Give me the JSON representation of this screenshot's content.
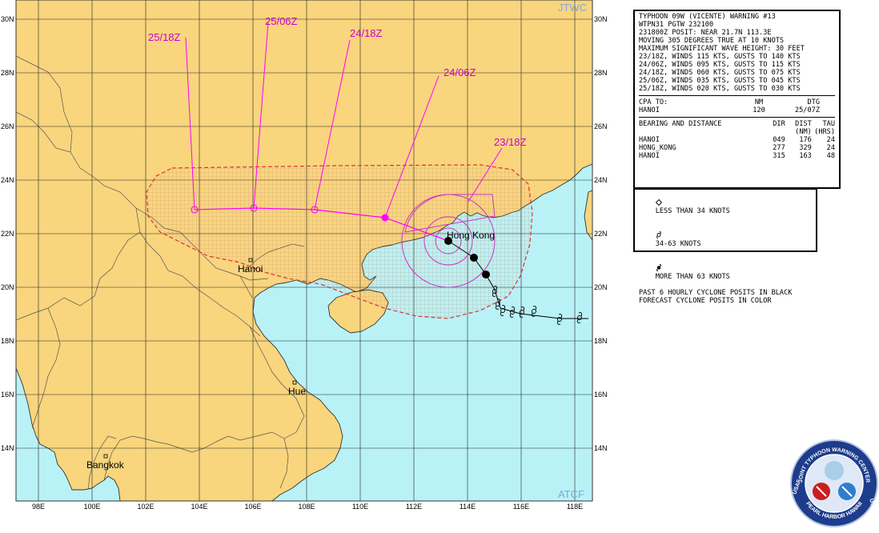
{
  "header": {
    "title": "TYPHOON 09W (VICENTE) WARNING #13",
    "lines": [
      "WTPN31 PGTW 232100",
      "231800Z POSIT: NEAR 21.7N 113.3E",
      "MOVING 305 DEGREES TRUE AT 10 KNOTS",
      "MAXIMUM SIGNIFICANT WAVE HEIGHT: 30 FEET"
    ],
    "forecasts": [
      "23/18Z, WINDS 115 KTS, GUSTS TO 140 KTS",
      "24/06Z, WINDS 095 KTS, GUSTS TO 115 KTS",
      "24/18Z, WINDS 060 KTS, GUSTS TO 075 KTS",
      "25/06Z, WINDS 035 KTS, GUSTS TO 045 KTS",
      "25/18Z, WINDS 020 KTS, GUSTS TO 030 KTS"
    ]
  },
  "cpa": {
    "label": "CPA TO:",
    "col_nm": "NM",
    "col_dtg": "DTG",
    "city": "HANOI",
    "nm": "120",
    "dtg": "25/07Z"
  },
  "bearing": {
    "label": "BEARING AND DISTANCE",
    "col_dir": "DIR",
    "col_dist": "DIST",
    "col_tau": "TAU",
    "sub_dist": "(NM)",
    "sub_tau": "(HRS)",
    "rows": [
      {
        "place": "HANOI",
        "dir": "049",
        "dist": "176",
        "tau": "24"
      },
      {
        "place": "HONG_KONG",
        "dir": "277",
        "dist": "329",
        "tau": "24"
      },
      {
        "place": "HANOI",
        "dir": "315",
        "dist": "163",
        "tau": "48"
      }
    ]
  },
  "legend": {
    "items": [
      {
        "symbol": "diamond-icon",
        "text": "LESS THAN 34 KNOTS"
      },
      {
        "symbol": "cyclone-open-icon",
        "text": "34-63 KNOTS"
      },
      {
        "symbol": "cyclone-filled-icon",
        "text": "MORE THAN 63 KNOTS"
      }
    ],
    "note1": "PAST 6 HOURLY CYCLONE POSITS IN BLACK",
    "note2": "FORECAST CYCLONE POSITS IN COLOR"
  },
  "map": {
    "corner_top": "JTWC",
    "corner_bottom": "ATCF",
    "lat_labels": [
      "30N",
      "28N",
      "26N",
      "24N",
      "22N",
      "20N",
      "18N",
      "16N",
      "14N"
    ],
    "lon_labels": [
      "98E",
      "100E",
      "102E",
      "104E",
      "106E",
      "108E",
      "110E",
      "112E",
      "114E",
      "116E",
      "118E"
    ],
    "cities": [
      "Hanoi",
      "Hong Kong",
      "Hue",
      "Bangkok"
    ],
    "forecast_times": [
      "25/18Z",
      "25/06Z",
      "24/18Z",
      "24/06Z",
      "23/18Z"
    ],
    "colors": {
      "land": "#f9d57d",
      "sea": "#b8f2f7",
      "forecast": "#ff00ff",
      "danger": "#dd3333",
      "label": "#7fa8d8"
    }
  },
  "seal": {
    "center_text": "JOINT TYPHOON WARNING CENTER",
    "bottom_text": "PEARL HARBOR HAWAII",
    "left_text": "USAF",
    "right_text": "USN"
  }
}
